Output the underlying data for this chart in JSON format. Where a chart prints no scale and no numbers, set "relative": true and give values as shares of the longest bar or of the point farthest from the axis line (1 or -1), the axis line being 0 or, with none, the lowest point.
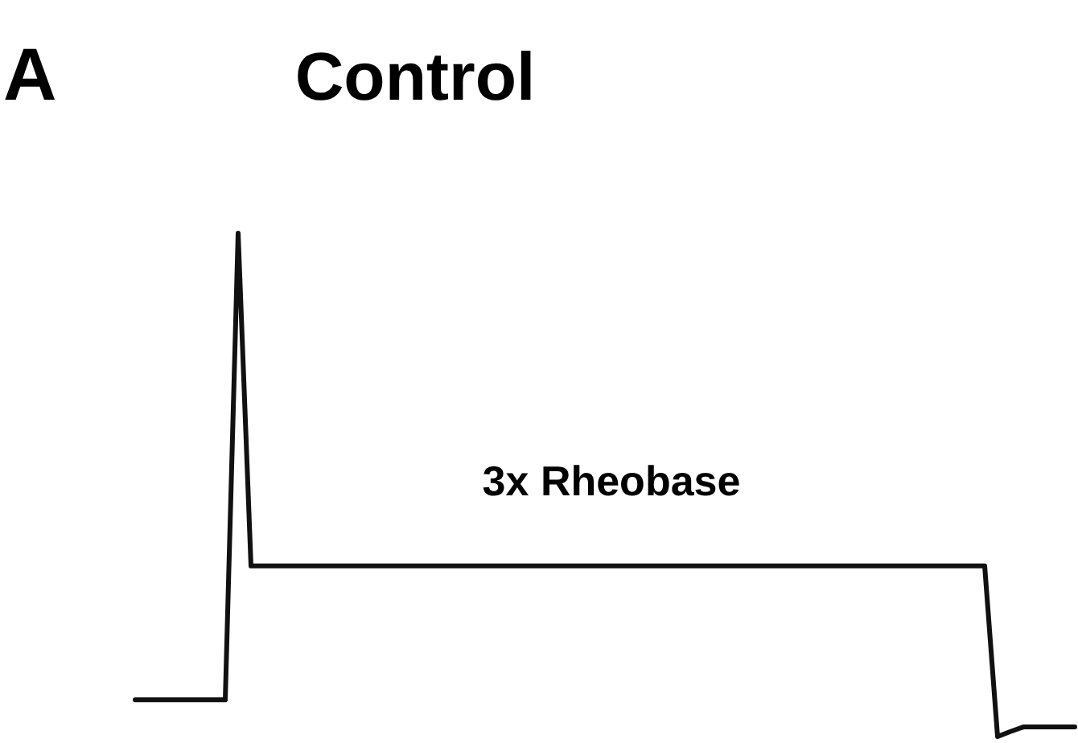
{
  "chart_data": {
    "type": "line",
    "title": "Control",
    "annotations": [
      "A",
      "3x Rheobase"
    ],
    "relative": true,
    "categories": [
      null,
      null,
      null,
      null,
      null,
      null,
      null,
      null,
      null,
      null,
      null,
      null,
      null,
      null,
      null,
      null,
      null,
      null,
      null,
      null,
      null,
      null,
      null,
      null,
      null,
      null,
      null,
      null,
      null,
      null,
      null,
      null,
      null,
      null,
      null,
      null,
      null,
      null,
      null,
      null,
      null,
      null,
      null,
      null,
      null,
      null,
      null,
      null,
      null,
      null,
      null,
      null,
      null,
      null,
      null,
      null,
      null,
      null,
      null,
      null,
      null,
      null,
      null,
      null,
      null,
      null,
      null,
      null,
      null,
      null,
      null,
      null,
      null,
      null
    ],
    "series": [
      {
        "color": "#111111",
        "values": [
          0.073,
          0.073,
          0.073,
          0.073,
          0.073,
          0.073,
          0.073,
          0.073,
          1,
          0.339,
          0.339,
          0.339,
          0.339,
          0.339,
          0.339,
          0.339,
          0.339,
          0.339,
          0.339,
          0.339,
          0.339,
          0.339,
          0.339,
          0.339,
          0.339,
          0.339,
          0.339,
          0.339,
          0.339,
          0.339,
          0.339,
          0.339,
          0.339,
          0.339,
          0.339,
          0.339,
          0.339,
          0.339,
          0.339,
          0.339,
          0.339,
          0.339,
          0.339,
          0.339,
          0.339,
          0.339,
          0.339,
          0.339,
          0.339,
          0.339,
          0.339,
          0.339,
          0.339,
          0.339,
          0.339,
          0.339,
          0.339,
          0.339,
          0.339,
          0.339,
          0.339,
          0.339,
          0.339,
          0.339,
          0.339,
          0.339,
          0.339,
          0,
          0.01,
          0.019,
          0.019,
          0.019,
          0.019,
          0.019
        ]
      }
    ]
  }
}
